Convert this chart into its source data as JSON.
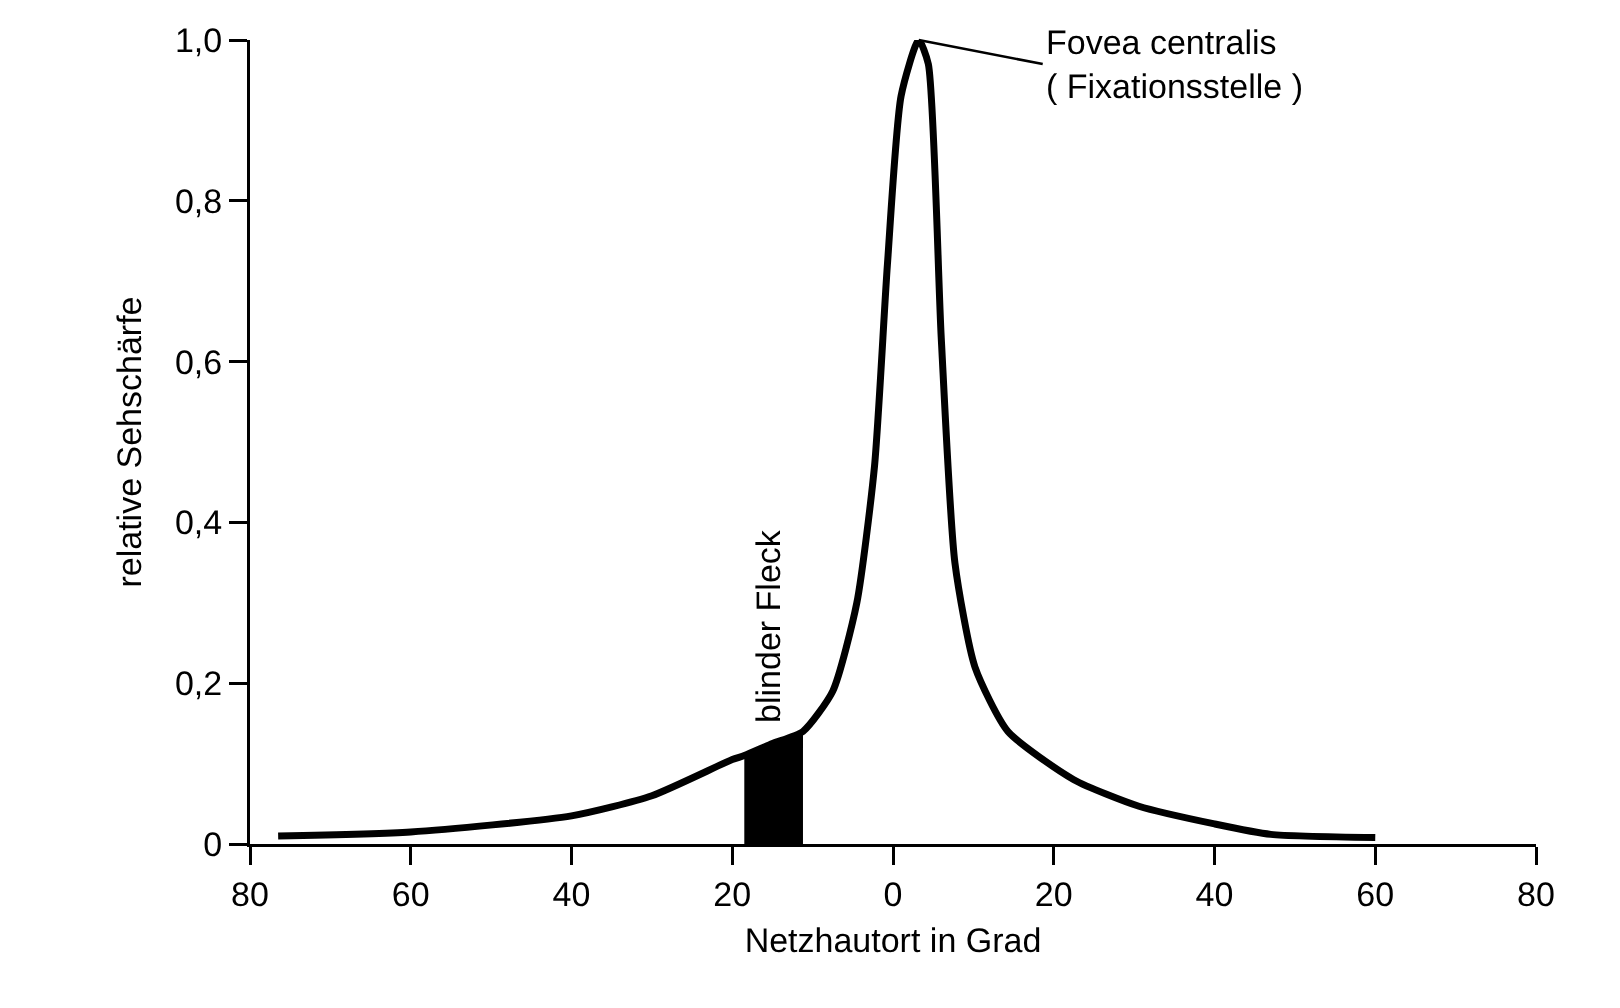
{
  "chart_data": {
    "type": "line",
    "xlabel": "Netzhautort in Grad",
    "ylabel": "relative Sehschärfe",
    "xlim": [
      -80,
      80
    ],
    "ylim": [
      0,
      1.0
    ],
    "xticks": [
      {
        "value": -80,
        "label": "80"
      },
      {
        "value": -60,
        "label": "60"
      },
      {
        "value": -40,
        "label": "40"
      },
      {
        "value": -20,
        "label": "20"
      },
      0,
      20,
      40,
      60,
      80
    ],
    "yticks": [
      0,
      {
        "value": 0.2,
        "label": "0,2"
      },
      {
        "value": 0.4,
        "label": "0,4"
      },
      {
        "value": 0.6,
        "label": "0,6"
      },
      {
        "value": 0.8,
        "label": "0,8"
      },
      {
        "value": 1.0,
        "label": "1,0"
      }
    ],
    "grid": false,
    "series": [
      {
        "color": "#000000",
        "x": [
          -76.5,
          -60,
          -40,
          -30,
          -20,
          -18.5,
          -15,
          -11.2,
          -7.5,
          -4.5,
          -2.3,
          -0.7,
          1,
          3.2,
          4.4,
          6,
          7.7,
          10.2,
          14.3,
          22.5,
          30.6,
          40,
          47,
          60
        ],
        "values": [
          0.01,
          0.015,
          0.035,
          0.06,
          0.105,
          0.11,
          0.125,
          0.14,
          0.19,
          0.3,
          0.47,
          0.72,
          0.93,
          1.0,
          0.97,
          0.63,
          0.35,
          0.22,
          0.14,
          0.08,
          0.047,
          0.025,
          0.012,
          0.008
        ]
      },
      {
        "type": "area",
        "color": "#000000",
        "x": [
          -18.5,
          -15,
          -11.2
        ],
        "values": [
          0.11,
          0.125,
          0.14
        ]
      }
    ],
    "annotations": [
      {
        "text": "Fovea centralis\n( Fixationsstelle )",
        "x": 3.2,
        "y": 1.0
      },
      {
        "text": "blinder Fleck",
        "x": -15,
        "y": 0.125
      }
    ]
  }
}
